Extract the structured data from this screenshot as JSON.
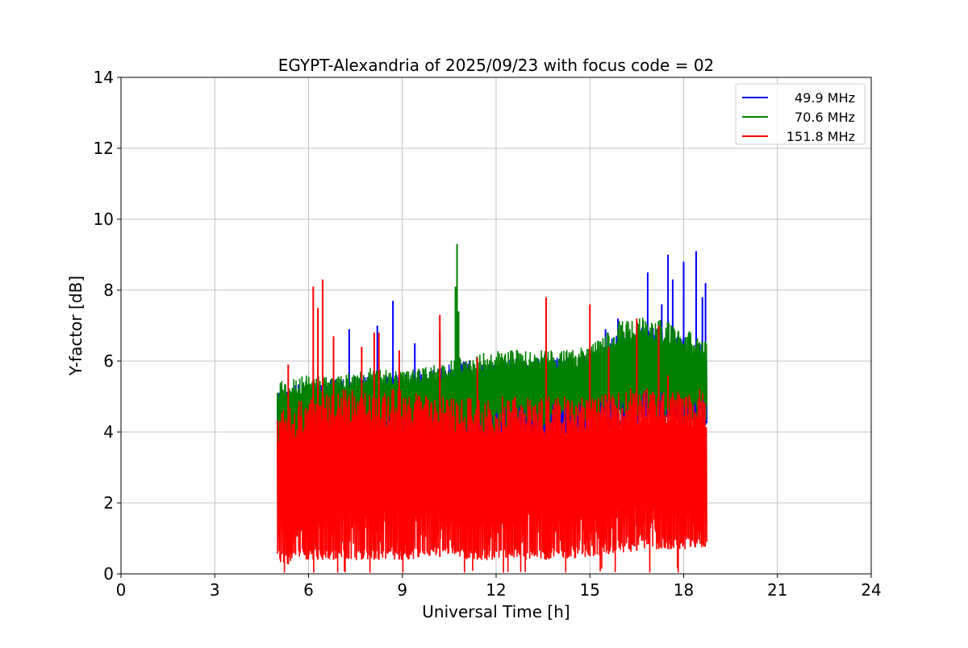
{
  "chart_data": {
    "type": "line",
    "title": "EGYPT-Alexandria of 2025/09/23 with focus code = 02",
    "xlabel": "Universal Time [h]",
    "ylabel": "Y-factor [dB]",
    "xlim": [
      0,
      24
    ],
    "ylim": [
      0,
      14
    ],
    "xticks": [
      0,
      3,
      6,
      9,
      12,
      15,
      18,
      21,
      24
    ],
    "yticks": [
      0,
      2,
      4,
      6,
      8,
      10,
      12,
      14
    ],
    "grid": true,
    "legend_position": "top-right",
    "envelope_x": [
      5,
      6,
      7,
      8,
      9,
      10,
      11,
      12,
      13,
      14,
      15,
      16,
      17,
      18,
      18.75
    ],
    "series": [
      {
        "name": "49.9 MHz",
        "color": "#0000ff",
        "low": [
          2.5,
          3.2,
          3.3,
          3.4,
          3.0,
          3.2,
          3.0,
          3.3,
          3.4,
          3.5,
          3.8,
          4.0,
          4.2,
          4.2,
          4.2
        ],
        "high": [
          5.2,
          5.4,
          5.5,
          5.6,
          5.6,
          5.8,
          6.0,
          6.0,
          6.1,
          6.1,
          6.2,
          6.8,
          7.0,
          6.7,
          6.4
        ],
        "spikes": [
          [
            7.3,
            6.9
          ],
          [
            8.2,
            7.0
          ],
          [
            8.7,
            7.7
          ],
          [
            9.4,
            6.5
          ],
          [
            15.5,
            6.9
          ],
          [
            15.9,
            7.2
          ],
          [
            16.85,
            8.5
          ],
          [
            17.3,
            7.6
          ],
          [
            17.5,
            9.0
          ],
          [
            17.65,
            8.3
          ],
          [
            18.0,
            8.8
          ],
          [
            18.4,
            9.1
          ],
          [
            18.6,
            7.8
          ],
          [
            18.7,
            8.2
          ]
        ]
      },
      {
        "name": "70.6 MHz",
        "color": "#008000",
        "low": [
          3.0,
          3.5,
          3.6,
          3.8,
          4.0,
          4.0,
          3.8,
          4.0,
          4.2,
          4.2,
          4.3,
          4.4,
          4.5,
          4.3,
          4.3
        ],
        "high": [
          5.4,
          5.6,
          5.6,
          5.8,
          5.7,
          5.9,
          6.2,
          6.3,
          6.3,
          6.3,
          6.4,
          7.2,
          7.3,
          6.9,
          6.6
        ],
        "spikes": [
          [
            10.2,
            6.8
          ],
          [
            10.7,
            8.1
          ],
          [
            10.75,
            9.3
          ],
          [
            10.8,
            7.4
          ]
        ]
      },
      {
        "name": "151.8 MHz",
        "color": "#ff0000",
        "low": [
          0.2,
          0.4,
          0.4,
          0.4,
          0.4,
          0.5,
          0.4,
          0.4,
          0.4,
          0.4,
          0.5,
          0.6,
          0.7,
          0.7,
          0.7
        ],
        "high": [
          4.6,
          5.0,
          5.2,
          5.3,
          5.2,
          5.0,
          5.0,
          5.0,
          5.0,
          5.0,
          5.0,
          5.2,
          5.3,
          5.2,
          5.2
        ],
        "spikes": [
          [
            5.35,
            5.9
          ],
          [
            6.15,
            8.1
          ],
          [
            6.3,
            7.5
          ],
          [
            6.45,
            8.3
          ],
          [
            6.8,
            6.7
          ],
          [
            7.7,
            6.4
          ],
          [
            8.1,
            6.8
          ],
          [
            8.25,
            6.8
          ],
          [
            8.9,
            6.3
          ],
          [
            10.2,
            7.3
          ],
          [
            11.4,
            6.1
          ],
          [
            13.6,
            7.8
          ],
          [
            15.0,
            7.6
          ],
          [
            15.6,
            6.4
          ],
          [
            16.5,
            7.2
          ],
          [
            17.2,
            7.0
          ],
          [
            17.5,
            5.6
          ]
        ]
      }
    ]
  }
}
